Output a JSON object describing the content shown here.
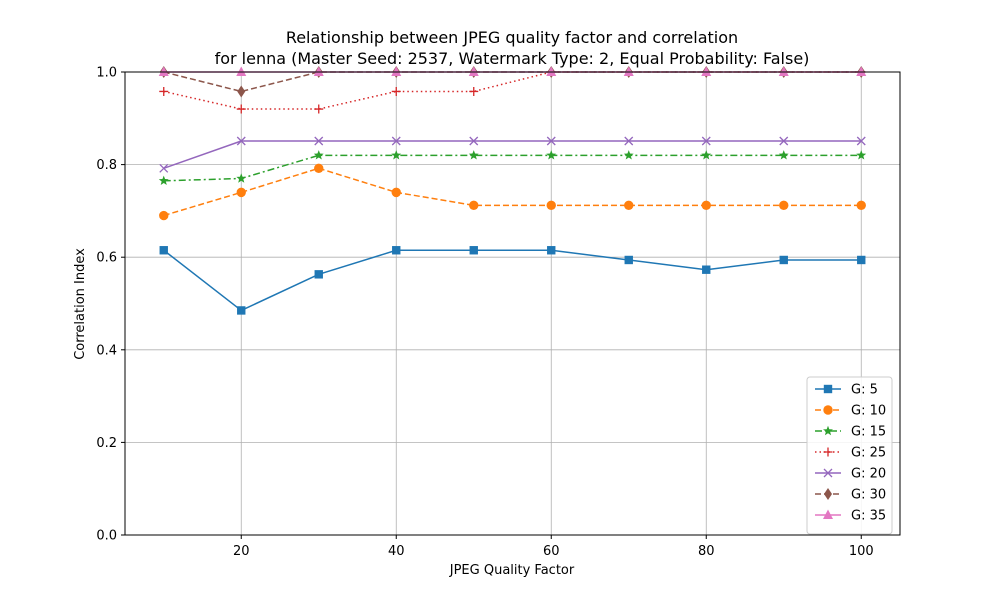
{
  "chart_data": {
    "type": "line",
    "title_lines": [
      "Relationship between JPEG quality factor and correlation",
      "for lenna (Master Seed: 2537, Watermark Type: 2, Equal Probability: False)"
    ],
    "xlabel": "JPEG Quality Factor",
    "ylabel": "Correlation Index",
    "xlim": [
      5,
      105
    ],
    "ylim": [
      0.0,
      1.0
    ],
    "x_ticks": [
      20,
      40,
      60,
      80,
      100
    ],
    "y_ticks": [
      0.0,
      0.2,
      0.4,
      0.6,
      0.8,
      1.0
    ],
    "x_tick_labels": [
      "20",
      "40",
      "60",
      "80",
      "100"
    ],
    "y_tick_labels": [
      "0.0",
      "0.2",
      "0.4",
      "0.6",
      "0.8",
      "1.0"
    ],
    "grid": true,
    "legend_position": "lower-right",
    "x": [
      10,
      20,
      30,
      40,
      50,
      60,
      70,
      80,
      90,
      100
    ],
    "series": [
      {
        "name": "G: 5",
        "color": "#1f77b4",
        "marker": "square",
        "linestyle": "solid",
        "values": [
          0.615,
          0.485,
          0.563,
          0.615,
          0.615,
          0.615,
          0.594,
          0.573,
          0.594,
          0.594
        ]
      },
      {
        "name": "G: 10",
        "color": "#ff7f0e",
        "marker": "circle",
        "linestyle": "dashed",
        "values": [
          0.69,
          0.74,
          0.792,
          0.74,
          0.712,
          0.712,
          0.712,
          0.712,
          0.712,
          0.712
        ]
      },
      {
        "name": "G: 15",
        "color": "#2ca02c",
        "marker": "star",
        "linestyle": "dashdot",
        "values": [
          0.765,
          0.77,
          0.82,
          0.82,
          0.82,
          0.82,
          0.82,
          0.82,
          0.82,
          0.82
        ]
      },
      {
        "name": "G: 25",
        "color": "#d62728",
        "marker": "plus",
        "linestyle": "dotted",
        "values": [
          0.958,
          0.92,
          0.92,
          0.958,
          0.958,
          1.0,
          1.0,
          1.0,
          1.0,
          1.0
        ]
      },
      {
        "name": "G: 20",
        "color": "#9467bd",
        "marker": "x",
        "linestyle": "solid",
        "values": [
          0.792,
          0.851,
          0.851,
          0.851,
          0.851,
          0.851,
          0.851,
          0.851,
          0.851,
          0.851
        ]
      },
      {
        "name": "G: 30",
        "color": "#8c564b",
        "marker": "diamond",
        "linestyle": "dashed",
        "values": [
          1.0,
          0.958,
          1.0,
          1.0,
          1.0,
          1.0,
          1.0,
          1.0,
          1.0,
          1.0
        ]
      },
      {
        "name": "G: 35",
        "color": "#e377c2",
        "marker": "triangle",
        "linestyle": "solid",
        "values": [
          1.0,
          1.0,
          1.0,
          1.0,
          1.0,
          1.0,
          1.0,
          1.0,
          1.0,
          1.0
        ]
      }
    ]
  }
}
